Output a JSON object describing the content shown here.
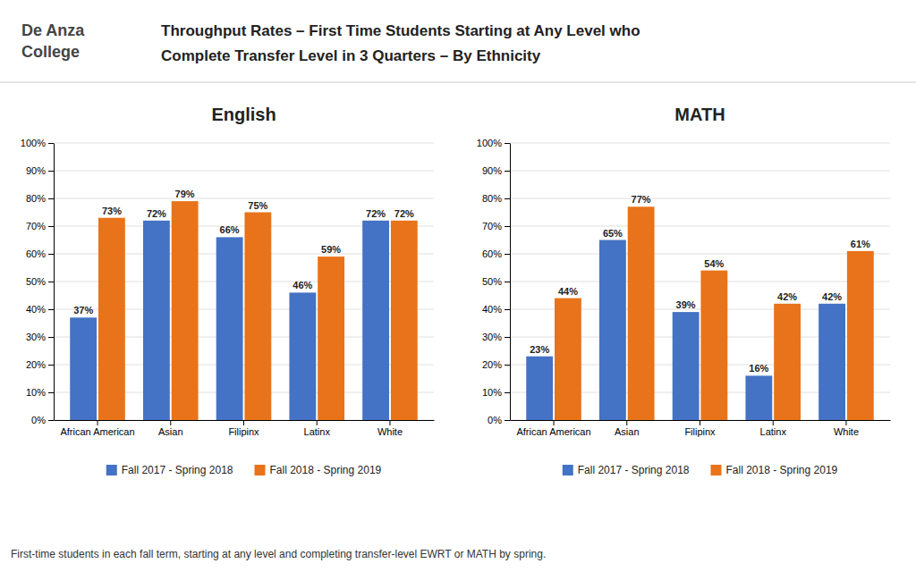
{
  "title": [
    "Throughput Rates – First Time Students Starting at Any Level who",
    "Complete Transfer Level in 3 Quarters – By Ethnicity"
  ],
  "annotations": [
    "De Anza",
    "College",
    "First-time students in each fall term, starting at any level and completing transfer-level EWRT or MATH by spring."
  ],
  "chart_data": [
    {
      "type": "bar",
      "title": "English",
      "categories": [
        "African American",
        "Asian",
        "Filipinx",
        "Latinx",
        "White"
      ],
      "series": [
        {
          "name": "Fall 2017 - Spring 2018",
          "color": "#4472C4",
          "values": [
            0.37,
            0.72,
            0.66,
            0.46,
            0.72
          ],
          "value_labels": [
            "37%",
            "72%",
            "66%",
            "46%",
            "72%"
          ]
        },
        {
          "name": "Fall 2018 - Spring 2019",
          "color": "#E8731A",
          "values": [
            0.73,
            0.79,
            0.75,
            0.59,
            0.72
          ],
          "value_labels": [
            "73%",
            "79%",
            "75%",
            "59%",
            "72%"
          ]
        }
      ],
      "ylim": [
        0,
        1.0
      ],
      "yticks": [
        {
          "value": 0,
          "label": "0%"
        },
        {
          "value": 0.1,
          "label": "10%"
        },
        {
          "value": 0.2,
          "label": "20%"
        },
        {
          "value": 0.3,
          "label": "30%"
        },
        {
          "value": 0.4,
          "label": "40%"
        },
        {
          "value": 0.5,
          "label": "50%"
        },
        {
          "value": 0.6,
          "label": "60%"
        },
        {
          "value": 0.7,
          "label": "70%"
        },
        {
          "value": 0.8,
          "label": "80%"
        },
        {
          "value": 0.9,
          "label": "90%"
        },
        {
          "value": 1.0,
          "label": "100%"
        }
      ],
      "grid": true,
      "data_labels": true,
      "legend": "bottom"
    },
    {
      "type": "bar",
      "title": "MATH",
      "categories": [
        "African American",
        "Asian",
        "Filipinx",
        "Latinx",
        "White"
      ],
      "series": [
        {
          "name": "Fall 2017 - Spring 2018",
          "color": "#4472C4",
          "values": [
            0.23,
            0.65,
            0.39,
            0.16,
            0.42
          ],
          "value_labels": [
            "23%",
            "65%",
            "39%",
            "16%",
            "42%"
          ]
        },
        {
          "name": "Fall 2018 - Spring 2019",
          "color": "#E8731A",
          "values": [
            0.44,
            0.77,
            0.54,
            0.42,
            0.61
          ],
          "value_labels": [
            "44%",
            "77%",
            "54%",
            "42%",
            "61%"
          ]
        }
      ],
      "ylim": [
        0,
        1.0
      ],
      "yticks": [
        {
          "value": 0,
          "label": "0%"
        },
        {
          "value": 0.1,
          "label": "10%"
        },
        {
          "value": 0.2,
          "label": "20%"
        },
        {
          "value": 0.3,
          "label": "30%"
        },
        {
          "value": 0.4,
          "label": "40%"
        },
        {
          "value": 0.5,
          "label": "50%"
        },
        {
          "value": 0.6,
          "label": "60%"
        },
        {
          "value": 0.7,
          "label": "70%"
        },
        {
          "value": 0.8,
          "label": "80%"
        },
        {
          "value": 0.9,
          "label": "90%"
        },
        {
          "value": 1.0,
          "label": "100%"
        }
      ],
      "grid": true,
      "data_labels": true,
      "legend": "bottom"
    }
  ]
}
